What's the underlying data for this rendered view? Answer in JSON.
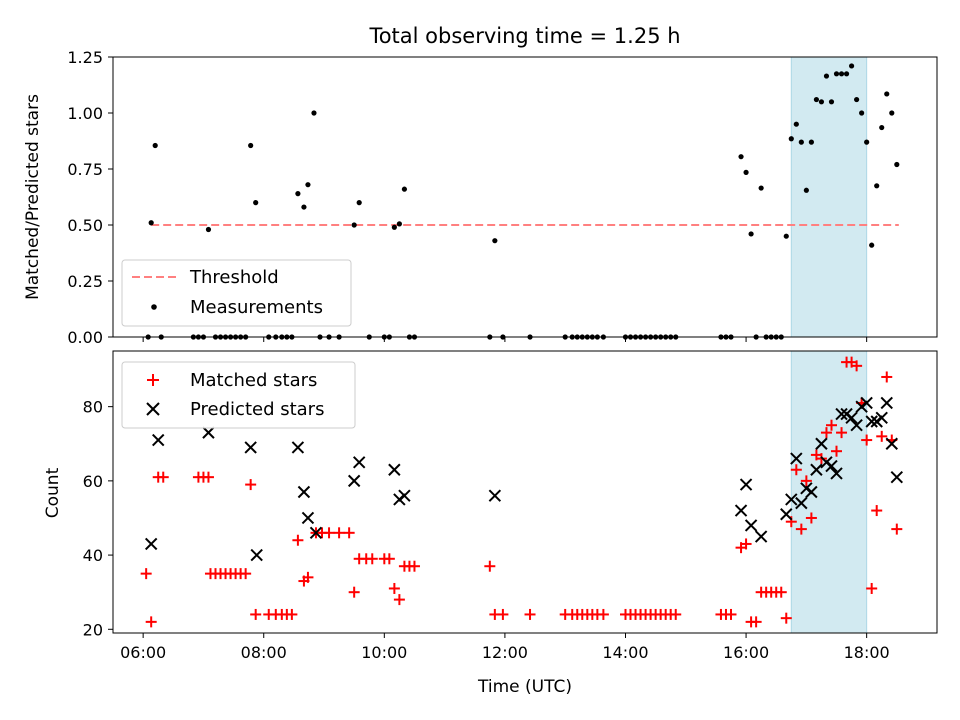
{
  "title": "Total observing time = 1.25 h",
  "colors": {
    "threshold": "#ff8080",
    "measurements": "#000000",
    "matched": "#ff0000",
    "predicted": "#000000",
    "highlight": "#add8e6"
  },
  "chart_data": [
    {
      "type": "scatter",
      "title": "Total observing time = 1.25 h",
      "xlabel": "",
      "ylabel": "Matched/Predicted stars",
      "xlim": [
        "05:30",
        "19:10"
      ],
      "ylim": [
        0,
        1.25
      ],
      "yticks": [
        "0.00",
        "0.25",
        "0.50",
        "0.75",
        "1.00",
        "1.25"
      ],
      "shaded_span": [
        "16:45",
        "18:00"
      ],
      "legend_position": "lower-left",
      "threshold": {
        "name": "Threshold",
        "x": [
          "06:08",
          "18:32"
        ],
        "y": 0.5
      },
      "series": [
        {
          "name": "Measurements",
          "points": [
            [
              "06:05",
              0
            ],
            [
              "06:08",
              0.51
            ],
            [
              "06:12",
              0.855
            ],
            [
              "06:18",
              0
            ],
            [
              "06:50",
              0
            ],
            [
              "06:55",
              0
            ],
            [
              "07:00",
              0
            ],
            [
              "07:05",
              0.48
            ],
            [
              "07:12",
              0
            ],
            [
              "07:17",
              0
            ],
            [
              "07:22",
              0
            ],
            [
              "07:27",
              0
            ],
            [
              "07:32",
              0
            ],
            [
              "07:37",
              0
            ],
            [
              "07:42",
              0
            ],
            [
              "07:47",
              0.855
            ],
            [
              "07:52",
              0.6
            ],
            [
              "08:05",
              0
            ],
            [
              "08:12",
              0
            ],
            [
              "08:18",
              0
            ],
            [
              "08:23",
              0
            ],
            [
              "08:28",
              0
            ],
            [
              "08:34",
              0.64
            ],
            [
              "08:40",
              0.58
            ],
            [
              "08:44",
              0.68
            ],
            [
              "08:50",
              1.0
            ],
            [
              "08:56",
              0
            ],
            [
              "09:05",
              0
            ],
            [
              "09:15",
              0
            ],
            [
              "09:30",
              0.5
            ],
            [
              "09:35",
              0.6
            ],
            [
              "09:45",
              0
            ],
            [
              "10:00",
              0
            ],
            [
              "10:05",
              0
            ],
            [
              "10:10",
              0.49
            ],
            [
              "10:15",
              0.505
            ],
            [
              "10:20",
              0.66
            ],
            [
              "10:25",
              0
            ],
            [
              "10:30",
              0
            ],
            [
              "11:45",
              0
            ],
            [
              "11:50",
              0.43
            ],
            [
              "11:58",
              0
            ],
            [
              "12:25",
              0
            ],
            [
              "13:00",
              0
            ],
            [
              "13:07",
              0
            ],
            [
              "13:12",
              0
            ],
            [
              "13:17",
              0
            ],
            [
              "13:22",
              0
            ],
            [
              "13:27",
              0
            ],
            [
              "13:32",
              0
            ],
            [
              "13:38",
              0
            ],
            [
              "14:00",
              0
            ],
            [
              "14:05",
              0
            ],
            [
              "14:10",
              0
            ],
            [
              "14:15",
              0
            ],
            [
              "14:20",
              0
            ],
            [
              "14:25",
              0
            ],
            [
              "14:30",
              0
            ],
            [
              "14:35",
              0
            ],
            [
              "14:40",
              0
            ],
            [
              "14:45",
              0
            ],
            [
              "14:50",
              0
            ],
            [
              "15:35",
              0
            ],
            [
              "15:40",
              0
            ],
            [
              "15:45",
              0
            ],
            [
              "15:55",
              0.805
            ],
            [
              "16:00",
              0.735
            ],
            [
              "16:05",
              0.46
            ],
            [
              "16:10",
              0
            ],
            [
              "16:15",
              0.665
            ],
            [
              "16:20",
              0
            ],
            [
              "16:25",
              0
            ],
            [
              "16:30",
              0
            ],
            [
              "16:35",
              0
            ],
            [
              "16:40",
              0.45
            ],
            [
              "16:45",
              0.885
            ],
            [
              "16:50",
              0.95
            ],
            [
              "16:55",
              0.87
            ],
            [
              "17:00",
              0.655
            ],
            [
              "17:05",
              0.87
            ],
            [
              "17:10",
              1.06
            ],
            [
              "17:15",
              1.05
            ],
            [
              "17:20",
              1.165
            ],
            [
              "17:25",
              1.05
            ],
            [
              "17:30",
              1.175
            ],
            [
              "17:35",
              1.175
            ],
            [
              "17:40",
              1.175
            ],
            [
              "17:45",
              1.21
            ],
            [
              "17:50",
              1.06
            ],
            [
              "17:55",
              1.0
            ],
            [
              "18:00",
              0.87
            ],
            [
              "18:05",
              0.41
            ],
            [
              "18:10",
              0.675
            ],
            [
              "18:15",
              0.935
            ],
            [
              "18:20",
              1.085
            ],
            [
              "18:25",
              1.0
            ],
            [
              "18:30",
              0.77
            ]
          ]
        }
      ]
    },
    {
      "type": "scatter",
      "title": "",
      "xlabel": "Time (UTC)",
      "ylabel": "Count",
      "xlim": [
        "05:30",
        "19:10"
      ],
      "ylim": [
        19,
        95
      ],
      "xticks": [
        "06:00",
        "08:00",
        "10:00",
        "12:00",
        "14:00",
        "16:00",
        "18:00"
      ],
      "yticks": [
        "20",
        "40",
        "60",
        "80"
      ],
      "shaded_span": [
        "16:45",
        "18:00"
      ],
      "legend_position": "upper-left",
      "series": [
        {
          "name": "Matched stars",
          "marker": "plus",
          "points": [
            [
              "06:03",
              35
            ],
            [
              "06:08",
              22
            ],
            [
              "06:15",
              61
            ],
            [
              "06:20",
              61
            ],
            [
              "06:55",
              61
            ],
            [
              "07:00",
              61
            ],
            [
              "07:05",
              61
            ],
            [
              "07:07",
              35
            ],
            [
              "07:12",
              35
            ],
            [
              "07:17",
              35
            ],
            [
              "07:22",
              35
            ],
            [
              "07:27",
              35
            ],
            [
              "07:32",
              35
            ],
            [
              "07:37",
              35
            ],
            [
              "07:42",
              35
            ],
            [
              "07:47",
              59
            ],
            [
              "07:52",
              24
            ],
            [
              "08:05",
              24
            ],
            [
              "08:12",
              24
            ],
            [
              "08:18",
              24
            ],
            [
              "08:23",
              24
            ],
            [
              "08:28",
              24
            ],
            [
              "08:34",
              44
            ],
            [
              "08:40",
              33
            ],
            [
              "08:44",
              34
            ],
            [
              "08:52",
              46
            ],
            [
              "08:58",
              46
            ],
            [
              "09:05",
              46
            ],
            [
              "09:15",
              46
            ],
            [
              "09:25",
              46
            ],
            [
              "09:30",
              30
            ],
            [
              "09:35",
              39
            ],
            [
              "09:42",
              39
            ],
            [
              "09:48",
              39
            ],
            [
              "10:00",
              39
            ],
            [
              "10:05",
              39
            ],
            [
              "10:10",
              31
            ],
            [
              "10:15",
              28
            ],
            [
              "10:20",
              37
            ],
            [
              "10:25",
              37
            ],
            [
              "10:30",
              37
            ],
            [
              "11:45",
              37
            ],
            [
              "11:50",
              24
            ],
            [
              "11:58",
              24
            ],
            [
              "12:25",
              24
            ],
            [
              "13:00",
              24
            ],
            [
              "13:07",
              24
            ],
            [
              "13:12",
              24
            ],
            [
              "13:17",
              24
            ],
            [
              "13:22",
              24
            ],
            [
              "13:27",
              24
            ],
            [
              "13:32",
              24
            ],
            [
              "13:38",
              24
            ],
            [
              "14:00",
              24
            ],
            [
              "14:05",
              24
            ],
            [
              "14:10",
              24
            ],
            [
              "14:15",
              24
            ],
            [
              "14:20",
              24
            ],
            [
              "14:25",
              24
            ],
            [
              "14:30",
              24
            ],
            [
              "14:35",
              24
            ],
            [
              "14:40",
              24
            ],
            [
              "14:45",
              24
            ],
            [
              "14:50",
              24
            ],
            [
              "15:35",
              24
            ],
            [
              "15:40",
              24
            ],
            [
              "15:45",
              24
            ],
            [
              "15:55",
              42
            ],
            [
              "16:00",
              43
            ],
            [
              "16:05",
              22
            ],
            [
              "16:10",
              22
            ],
            [
              "16:15",
              30
            ],
            [
              "16:20",
              30
            ],
            [
              "16:25",
              30
            ],
            [
              "16:30",
              30
            ],
            [
              "16:35",
              30
            ],
            [
              "16:40",
              23
            ],
            [
              "16:45",
              49
            ],
            [
              "16:50",
              63
            ],
            [
              "16:55",
              47
            ],
            [
              "17:00",
              60
            ],
            [
              "17:05",
              50
            ],
            [
              "17:10",
              67
            ],
            [
              "17:15",
              66
            ],
            [
              "17:20",
              73
            ],
            [
              "17:25",
              75
            ],
            [
              "17:30",
              68
            ],
            [
              "17:35",
              73
            ],
            [
              "17:40",
              92
            ],
            [
              "17:45",
              92
            ],
            [
              "17:50",
              91
            ],
            [
              "17:55",
              81
            ],
            [
              "18:00",
              71
            ],
            [
              "18:05",
              31
            ],
            [
              "18:10",
              52
            ],
            [
              "18:15",
              72
            ],
            [
              "18:20",
              88
            ],
            [
              "18:25",
              71
            ],
            [
              "18:30",
              47
            ]
          ]
        },
        {
          "name": "Predicted stars",
          "marker": "x",
          "points": [
            [
              "06:08",
              43
            ],
            [
              "06:15",
              71
            ],
            [
              "07:05",
              73
            ],
            [
              "07:47",
              69
            ],
            [
              "07:53",
              40
            ],
            [
              "08:34",
              69
            ],
            [
              "08:40",
              57
            ],
            [
              "08:44",
              50
            ],
            [
              "08:52",
              46
            ],
            [
              "09:30",
              60
            ],
            [
              "09:35",
              65
            ],
            [
              "10:10",
              63
            ],
            [
              "10:15",
              55
            ],
            [
              "10:20",
              56
            ],
            [
              "11:50",
              56
            ],
            [
              "15:55",
              52
            ],
            [
              "16:00",
              59
            ],
            [
              "16:05",
              48
            ],
            [
              "16:15",
              45
            ],
            [
              "16:40",
              51
            ],
            [
              "16:45",
              55
            ],
            [
              "16:50",
              66
            ],
            [
              "16:55",
              54
            ],
            [
              "17:00",
              58
            ],
            [
              "17:05",
              57
            ],
            [
              "17:10",
              63
            ],
            [
              "17:15",
              70
            ],
            [
              "17:20",
              65
            ],
            [
              "17:25",
              64
            ],
            [
              "17:30",
              62
            ],
            [
              "17:35",
              78
            ],
            [
              "17:40",
              78
            ],
            [
              "17:45",
              77
            ],
            [
              "17:50",
              75
            ],
            [
              "17:55",
              80
            ],
            [
              "18:00",
              81
            ],
            [
              "18:05",
              76
            ],
            [
              "18:10",
              76
            ],
            [
              "18:15",
              77
            ],
            [
              "18:20",
              81
            ],
            [
              "18:25",
              70
            ],
            [
              "18:30",
              61
            ]
          ]
        }
      ]
    }
  ]
}
